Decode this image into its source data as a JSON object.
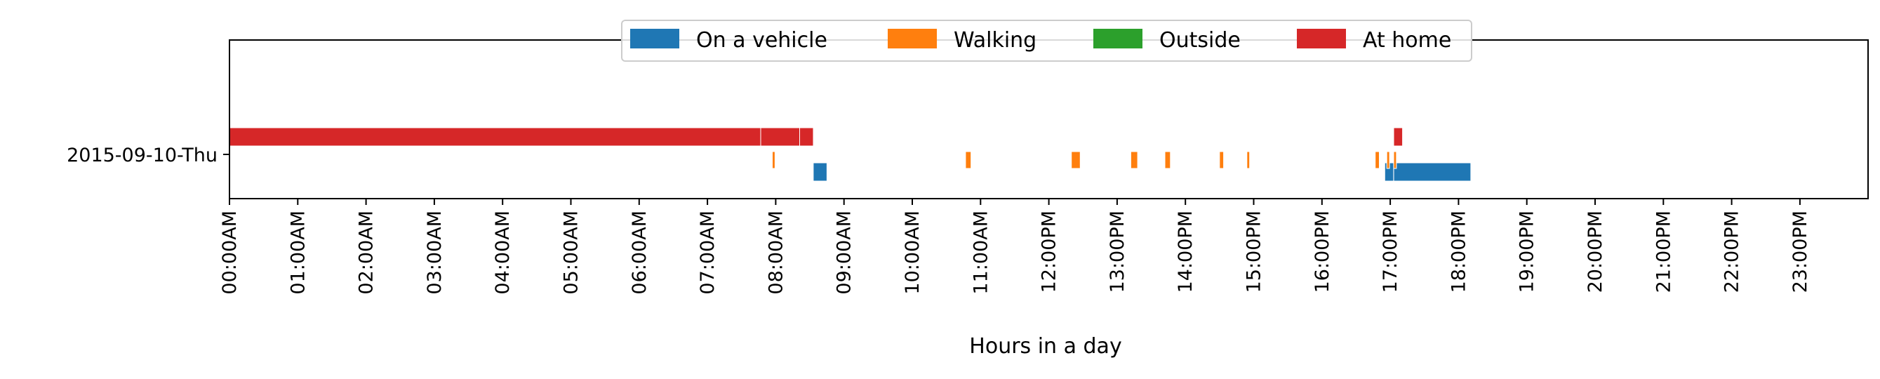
{
  "chart_data": {
    "type": "timeline",
    "xlabel": "Hours in a day",
    "xlim": [
      0,
      24
    ],
    "x_ticks": [
      "00:00AM",
      "01:00AM",
      "02:00AM",
      "03:00AM",
      "04:00AM",
      "05:00AM",
      "06:00AM",
      "07:00AM",
      "08:00AM",
      "09:00AM",
      "10:00AM",
      "11:00AM",
      "12:00PM",
      "13:00PM",
      "14:00PM",
      "15:00PM",
      "16:00PM",
      "17:00PM",
      "18:00PM",
      "19:00PM",
      "20:00PM",
      "21:00PM",
      "22:00PM",
      "23:00PM"
    ],
    "y_categories": [
      "2015-09-10-Thu"
    ],
    "legend_position": "top-center",
    "series": [
      {
        "name": "On a vehicle",
        "color": "#1f77b4",
        "intervals": [
          [
            8.55,
            8.75
          ],
          [
            16.92,
            17.05
          ],
          [
            17.05,
            18.18
          ]
        ]
      },
      {
        "name": "Walking",
        "color": "#ff7f0e",
        "intervals": [
          [
            7.95,
            7.99
          ],
          [
            10.78,
            10.86
          ],
          [
            12.33,
            12.46
          ],
          [
            13.2,
            13.3
          ],
          [
            13.7,
            13.78
          ],
          [
            14.5,
            14.56
          ],
          [
            14.9,
            14.94
          ],
          [
            16.78,
            16.84
          ],
          [
            16.95,
            16.99
          ],
          [
            17.05,
            17.09
          ]
        ]
      },
      {
        "name": "Outside",
        "color": "#2ca02c",
        "intervals": []
      },
      {
        "name": "At home",
        "color": "#d62728",
        "intervals": [
          [
            0.0,
            7.78
          ],
          [
            7.78,
            8.35
          ],
          [
            8.35,
            8.55
          ],
          [
            17.05,
            17.18
          ]
        ]
      }
    ]
  }
}
